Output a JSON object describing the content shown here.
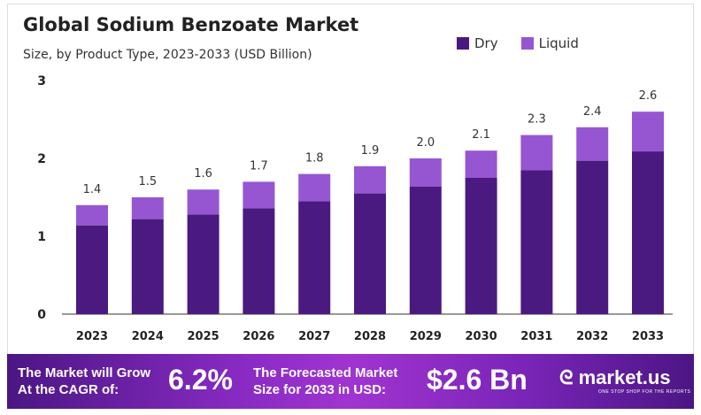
{
  "chart_data": {
    "type": "bar",
    "stacked": true,
    "title": "Global Sodium Benzoate Market",
    "subtitle": "Size, by Product Type, 2023-2033 (USD Billion)",
    "categories": [
      "2023",
      "2024",
      "2025",
      "2026",
      "2027",
      "2028",
      "2029",
      "2030",
      "2031",
      "2032",
      "2033"
    ],
    "series": [
      {
        "name": "Dry",
        "color": "#4b1a80",
        "values": [
          1.14,
          1.22,
          1.28,
          1.36,
          1.45,
          1.55,
          1.64,
          1.75,
          1.85,
          1.97,
          2.09
        ]
      },
      {
        "name": "Liquid",
        "color": "#9656d2",
        "values": [
          0.26,
          0.28,
          0.32,
          0.34,
          0.35,
          0.35,
          0.36,
          0.35,
          0.45,
          0.43,
          0.51
        ]
      }
    ],
    "totals_labels": [
      "1.4",
      "1.5",
      "1.6",
      "1.7",
      "1.8",
      "1.9",
      "2.0",
      "2.1",
      "2.3",
      "2.4",
      "2.6"
    ],
    "totals": [
      1.4,
      1.5,
      1.6,
      1.7,
      1.8,
      1.9,
      2.0,
      2.1,
      2.3,
      2.4,
      2.6
    ],
    "ylim": [
      0,
      3
    ],
    "yticks": [
      "0",
      "1",
      "2",
      "3"
    ],
    "grid": false,
    "legend": "top-right"
  },
  "footer": {
    "cagr_text1": "The Market will Grow",
    "cagr_text2": "At the CAGR of:",
    "cagr": "6.2%",
    "forecast_text1": "The Forecasted Market",
    "forecast_text2": "Size for 2033 in USD:",
    "forecast": "$2.6 Bn",
    "logo": "market.us",
    "tagline": "ONE STOP SHOP FOR THE REPORTS"
  }
}
